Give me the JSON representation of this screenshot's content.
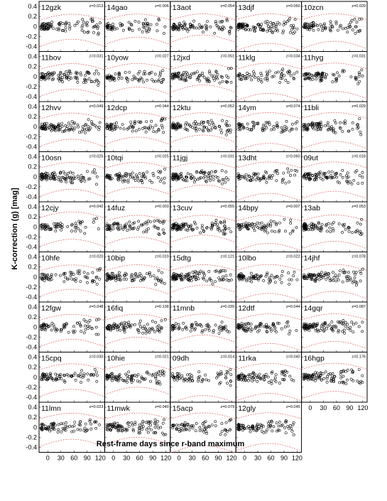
{
  "chart_data": {
    "type": "scatter",
    "ylabel": "K-correction (g) [mag]",
    "xlabel": "Rest-frame days since r-band maximum",
    "x_ticks": [
      0,
      30,
      60,
      90,
      120
    ],
    "y_ticks": [
      0.4,
      0.2,
      0,
      -0.2,
      -0.4
    ],
    "xlim": [
      -20,
      130
    ],
    "ylim": [
      -0.5,
      0.5
    ],
    "grid": false,
    "panels": [
      {
        "name": "12gzk",
        "z": "z=0.013"
      },
      {
        "name": "14gao",
        "z": "z=0.006"
      },
      {
        "name": "13aot",
        "z": "z=0.054"
      },
      {
        "name": "13djf",
        "z": "z=0.060"
      },
      {
        "name": "10zcn",
        "z": "z=0.029"
      },
      {
        "name": "11bov",
        "z": "z=0.031"
      },
      {
        "name": "10yow",
        "z": "z=0.027"
      },
      {
        "name": "12jxd",
        "z": "z=0.051"
      },
      {
        "name": "11klg",
        "z": "z=0.034"
      },
      {
        "name": "11hyg",
        "z": "z=0.031"
      },
      {
        "name": "12hvv",
        "z": "z=0.049"
      },
      {
        "name": "12dcp",
        "z": "z=0.044"
      },
      {
        "name": "12ktu",
        "z": "z=0.052"
      },
      {
        "name": "14ym",
        "z": "z=0.074"
      },
      {
        "name": "11bli",
        "z": "z=0.029"
      },
      {
        "name": "10osn",
        "z": "z=0.025"
      },
      {
        "name": "10tqi",
        "z": "z=0.025"
      },
      {
        "name": "11jgj",
        "z": "z=0.031"
      },
      {
        "name": "13dht",
        "z": "z=0.060"
      },
      {
        "name": "09ut",
        "z": "z=0.018"
      },
      {
        "name": "12cjy",
        "z": "z=0.042"
      },
      {
        "name": "14fuz",
        "z": "z=0.003"
      },
      {
        "name": "13cuv",
        "z": "z=0.055"
      },
      {
        "name": "14bpy",
        "z": "z=0.007"
      },
      {
        "name": "13ab",
        "z": "z=0.053"
      },
      {
        "name": "10hfe",
        "z": "z=0.020"
      },
      {
        "name": "10bip",
        "z": "z=0.019"
      },
      {
        "name": "15dtg",
        "z": "z=0.121"
      },
      {
        "name": "10lbo",
        "z": "z=0.022"
      },
      {
        "name": "14jhf",
        "z": "z=0.078"
      },
      {
        "name": "12fgw",
        "z": "z=0.048"
      },
      {
        "name": "16fiq",
        "z": "z=0.138"
      },
      {
        "name": "11mnb",
        "z": "z=0.039"
      },
      {
        "name": "12dtf",
        "z": "z=0.044"
      },
      {
        "name": "14gqr",
        "z": "z=0.087"
      },
      {
        "name": "15cpq",
        "z": "z=0.030"
      },
      {
        "name": "10hie",
        "z": "z=0.021"
      },
      {
        "name": "09dh",
        "z": "z=0.014"
      },
      {
        "name": "11rka",
        "z": "z=0.040"
      },
      {
        "name": "16hgp",
        "z": "z=0.176"
      },
      {
        "name": "11lmn",
        "z": "z=0.023"
      },
      {
        "name": "11mwk",
        "z": "z=0.040"
      },
      {
        "name": "15acp",
        "z": "z=0.079"
      },
      {
        "name": "12gly",
        "z": "z=0.045"
      }
    ]
  }
}
